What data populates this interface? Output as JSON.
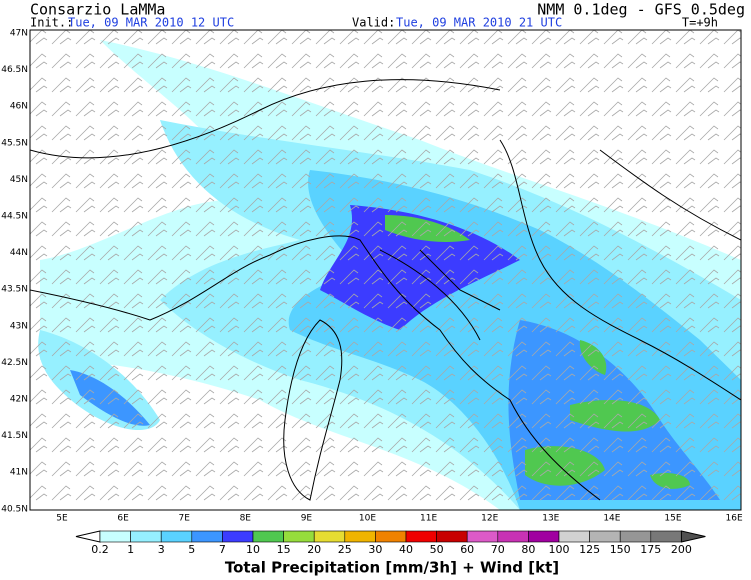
{
  "header": {
    "organization": "Consarzio LaMMa",
    "init_label": "Init.:",
    "init_value": "Tue, 09 MAR 2010   12 UTC",
    "model": "NMM 0.1deg - GFS 0.5deg",
    "valid_label": "Valid:",
    "valid_value": "Tue, 09 MAR 2010   21 UTC",
    "forecast_step": "T=+9h"
  },
  "map": {
    "lon_labels": [
      "5E",
      "6E",
      "7E",
      "8E",
      "9E",
      "10E",
      "11E",
      "12E",
      "13E",
      "14E",
      "15E",
      "16E"
    ],
    "lat_labels": [
      "47N",
      "46.5N",
      "46N",
      "45.5N",
      "45N",
      "44.5N",
      "44N",
      "43.5N",
      "43N",
      "42.5N",
      "42N",
      "41.5N",
      "41N",
      "40.5N"
    ]
  },
  "colorbar": {
    "labels": [
      "0.2",
      "1",
      "3",
      "5",
      "7",
      "10",
      "15",
      "20",
      "25",
      "30",
      "40",
      "50",
      "60",
      "70",
      "80",
      "100",
      "125",
      "150",
      "175",
      "200"
    ],
    "colors": [
      "#ffffff",
      "#c8ffff",
      "#96f0ff",
      "#5ad2ff",
      "#3c96ff",
      "#3c3cff",
      "#50c850",
      "#96dc3c",
      "#e6dc32",
      "#f0b400",
      "#f08200",
      "#f00000",
      "#c80000",
      "#dc5ac8",
      "#c832b4",
      "#a000a0",
      "#d2d2d2",
      "#b4b4b4",
      "#969696",
      "#787878",
      "#505050"
    ],
    "title": "Total Precipitation [mm/3h] + Wind [kt]"
  }
}
